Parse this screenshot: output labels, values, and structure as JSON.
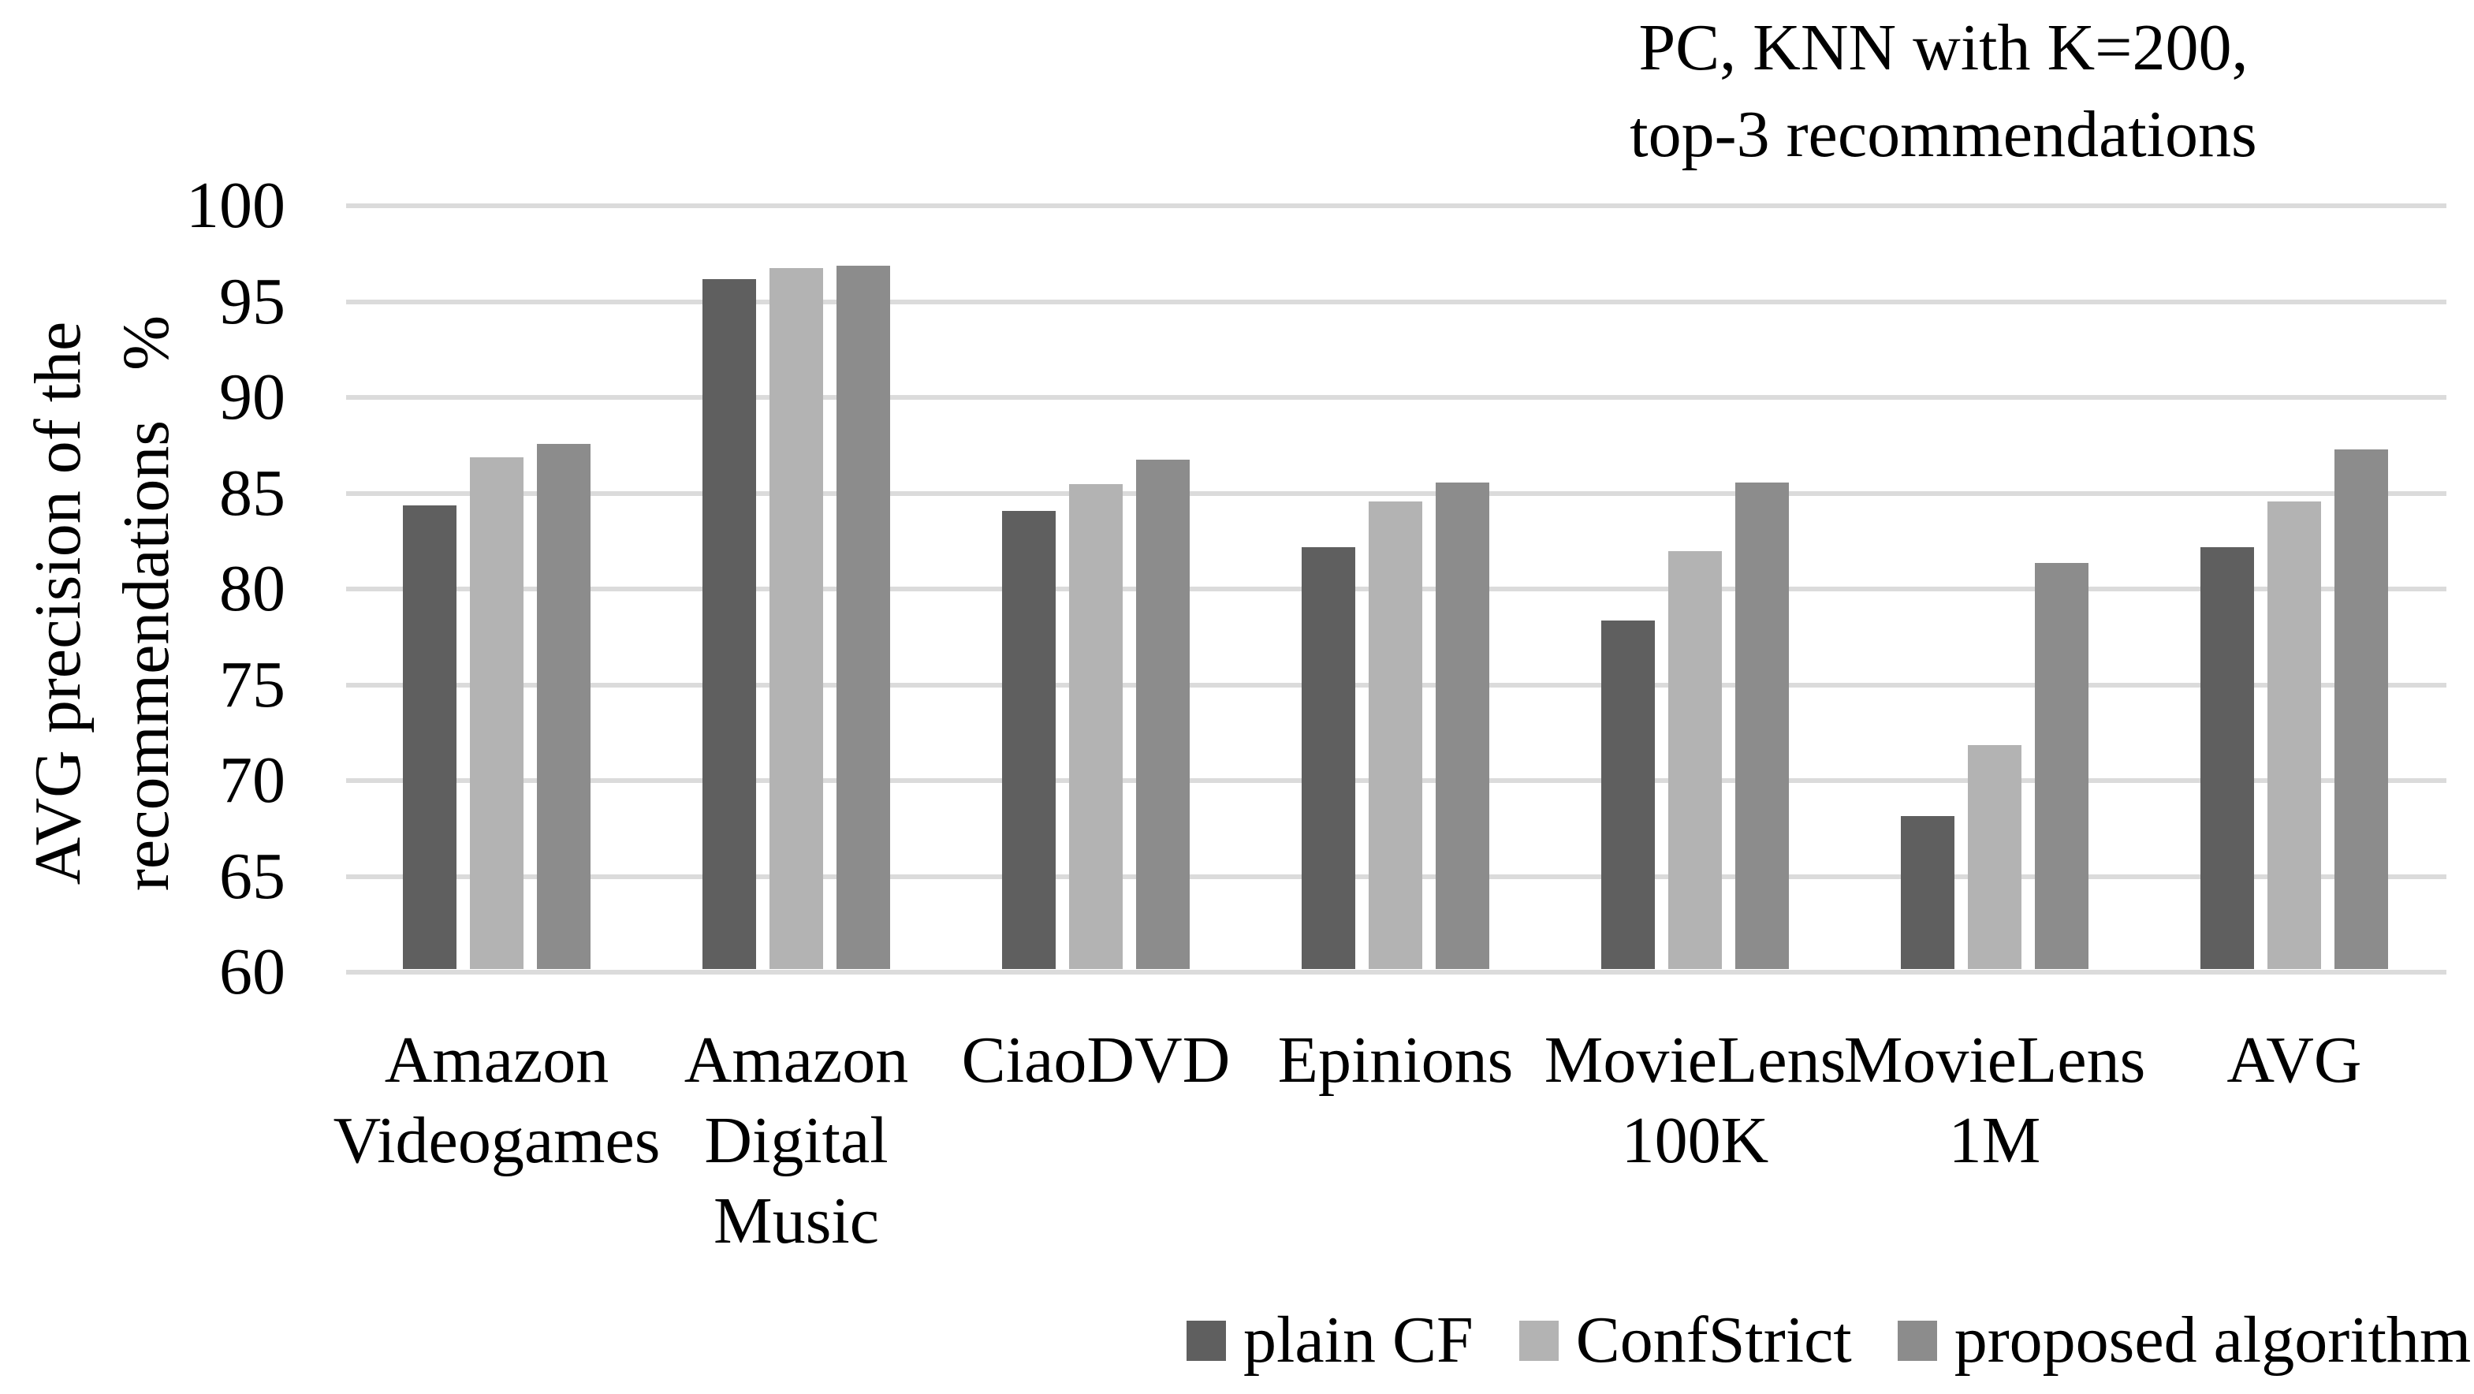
{
  "title": {
    "text": "PC, KNN with K=200,\ntop-3 recommendations"
  },
  "y_axis": {
    "label": "AVG precision of the\nrecommendations   %",
    "ticks": [
      "100",
      "95",
      "90",
      "85",
      "80",
      "75",
      "70",
      "65",
      "60"
    ]
  },
  "chart_data": {
    "type": "bar",
    "title": "PC, KNN with K=200, top-3 recommendations",
    "xlabel": "",
    "ylabel": "AVG precision of the recommendations %",
    "ylim": [
      60,
      100
    ],
    "y_tick_step": 5,
    "grid": true,
    "gridline_color": "#DBDBDB",
    "legend_position": "bottom",
    "categories": [
      "Amazon Videogames",
      "Amazon Digital Music",
      "CiaoDVD",
      "Epinions",
      "MovieLens 100K",
      "MovieLens 1M",
      "AVG"
    ],
    "category_label_lines": [
      [
        "Amazon",
        "Videogames"
      ],
      [
        "Amazon",
        "Digital",
        "Music"
      ],
      [
        "CiaoDVD"
      ],
      [
        "Epinions"
      ],
      [
        "MovieLens",
        "100K"
      ],
      [
        "MovieLens",
        "1M"
      ],
      [
        "AVG"
      ]
    ],
    "series": [
      {
        "name": "plain CF",
        "color": "#5F5F5F",
        "values": [
          84.2,
          96.0,
          83.9,
          82.0,
          78.2,
          68.0,
          82.0
        ]
      },
      {
        "name": "ConfStrict",
        "color": "#B3B3B3",
        "values": [
          86.7,
          96.6,
          85.3,
          84.4,
          81.8,
          71.7,
          84.4
        ]
      },
      {
        "name": "proposed algorithm",
        "color": "#8C8C8C",
        "values": [
          87.4,
          96.7,
          86.6,
          85.4,
          85.4,
          81.2,
          87.1
        ]
      }
    ]
  }
}
